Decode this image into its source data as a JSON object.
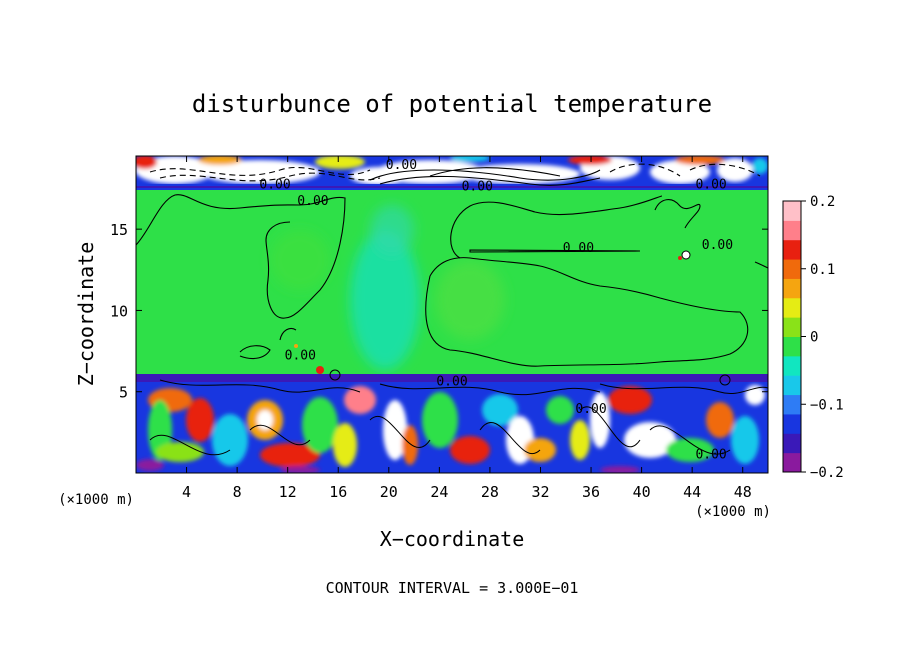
{
  "chart_data": {
    "type": "heatmap",
    "title": "disturbunce of potential temperature",
    "xlabel": "X−coordinate",
    "ylabel": "Z−coordinate",
    "x_unit": "(×1000 m)",
    "footer": "CONTOUR INTERVAL = 3.000E−01",
    "xlim": [
      0,
      50
    ],
    "ylim": [
      0,
      19.5
    ],
    "x_ticks": [
      4,
      8,
      12,
      16,
      20,
      24,
      28,
      32,
      36,
      40,
      44,
      48
    ],
    "y_ticks": [
      5,
      10,
      15
    ],
    "colorbar": {
      "range": [
        -0.2,
        0.2
      ],
      "tick_values": [
        0.2,
        0.1,
        0,
        -0.1,
        -0.2
      ],
      "tick_labels": [
        "0.2",
        "0.1",
        "0",
        "−0.1",
        "−0.2"
      ],
      "colors": [
        "#8a1a9e",
        "#3a19b8",
        "#1836e0",
        "#2e7cf5",
        "#19c8ea",
        "#11e6c0",
        "#2ee048",
        "#8ae218",
        "#e5ec14",
        "#f5a510",
        "#f06a0c",
        "#e82010",
        "#ff7f8a",
        "#ffc0c8"
      ]
    },
    "contour_interval": 0.3,
    "contour_labels": [
      {
        "text": "0.00",
        "x": 21,
        "y": 19.0
      },
      {
        "text": "0.00",
        "x": 11,
        "y": 17.8
      },
      {
        "text": "0.00",
        "x": 27,
        "y": 17.7
      },
      {
        "text": "0.00",
        "x": 45.5,
        "y": 17.8
      },
      {
        "text": "0.00",
        "x": 14,
        "y": 16.8
      },
      {
        "text": "0.00",
        "x": 35,
        "y": 13.9
      },
      {
        "text": "0.00",
        "x": 46,
        "y": 14.1
      },
      {
        "text": "0.00",
        "x": 13,
        "y": 7.3
      },
      {
        "text": "0.00",
        "x": 25,
        "y": 5.7
      },
      {
        "text": "0.00",
        "x": 36,
        "y": 4.0
      },
      {
        "text": "0.00",
        "x": 45.5,
        "y": 1.2
      }
    ],
    "regions": [
      {
        "kind": "band",
        "z": [
          0,
          6.1
        ],
        "value": "mixed −0.2 to 0.2"
      },
      {
        "kind": "band",
        "z": [
          6.1,
          17.9
        ],
        "value": 0
      },
      {
        "kind": "band",
        "z": [
          17.9,
          19.5
        ],
        "value": "mixed −0.2 to 0.2"
      }
    ]
  }
}
